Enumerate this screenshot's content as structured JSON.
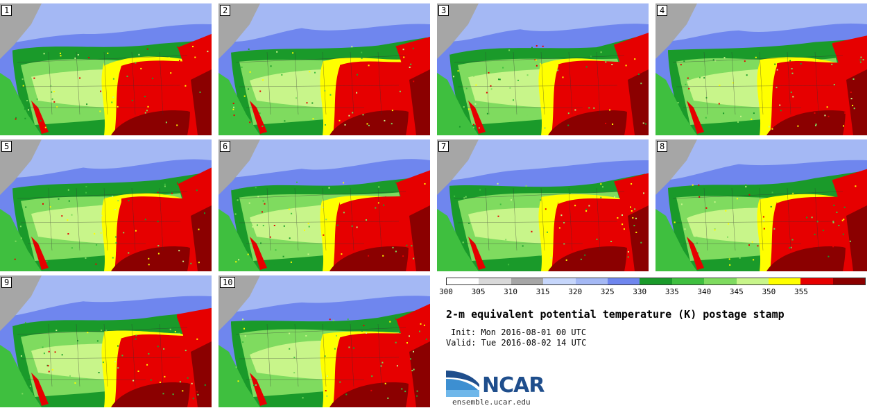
{
  "title": "2-m equivalent potential temperature (K) postage stamp",
  "init": "Init: Mon 2016-08-01 00 UTC",
  "valid": "Valid: Tue 2016-08-02 14 UTC",
  "logo": {
    "name": "NCAR",
    "url": "ensemble.ucar.edu"
  },
  "colorbar": {
    "ticks": [
      "300",
      "305",
      "310",
      "315",
      "320",
      "325",
      "330",
      "335",
      "340",
      "345",
      "350",
      "355"
    ],
    "colors": [
      "#ffffff",
      "#d9d9d9",
      "#a6a6a6",
      "#c6d6fb",
      "#a4b8f4",
      "#6f86ee",
      "#1a9a2a",
      "#3fbf3f",
      "#7fdb5f",
      "#c8f58a",
      "#ffff00",
      "#e60000",
      "#8b0000"
    ]
  },
  "panels": [
    {
      "label": "1"
    },
    {
      "label": "2"
    },
    {
      "label": "3"
    },
    {
      "label": "4"
    },
    {
      "label": "5"
    },
    {
      "label": "6"
    },
    {
      "label": "7"
    },
    {
      "label": "8"
    },
    {
      "label": "9"
    },
    {
      "label": "10"
    }
  ]
}
